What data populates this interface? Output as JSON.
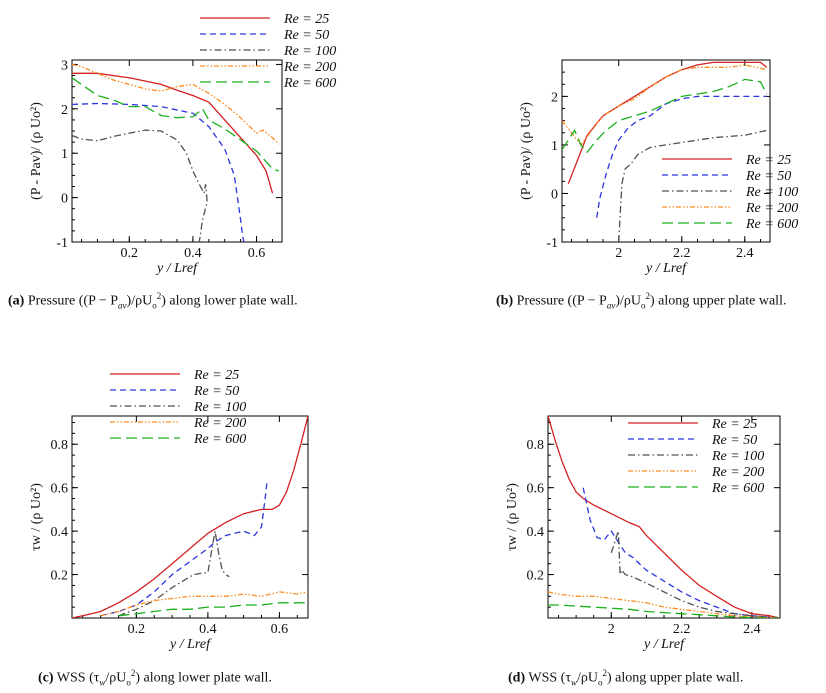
{
  "legend_labels": [
    "Re  = 25",
    "Re  = 50",
    "Re  = 100",
    "Re  = 200",
    "Re  = 600"
  ],
  "series_colors": [
    "#d42020",
    "#2b35e0",
    "#505050",
    "#ff8a1e",
    "#1cb01c"
  ],
  "captions": {
    "a": {
      "label": "(a)",
      "text": "Pressure ((P − P",
      "sub": "av",
      "rest": ")/ρU",
      "sub2": "o",
      "sup": "2",
      "tail": ") along lower plate wall."
    },
    "b": {
      "label": "(b)",
      "text": "Pressure ((P − P",
      "sub": "av",
      "rest": ")/ρU",
      "sub2": "o",
      "sup": "2",
      "tail": ") along upper plate wall."
    },
    "c": {
      "label": "(c)",
      "text": "WSS (τ",
      "sub": "w",
      "rest": "/ρU",
      "sub2": "o",
      "sup": "2",
      "tail": ") along lower plate wall."
    },
    "d": {
      "label": "(d)",
      "text": "WSS (τ",
      "sub": "w",
      "rest": "/ρU",
      "sub2": "o",
      "sup": "2",
      "tail": ") along upper plate wall."
    }
  },
  "chart_data": [
    {
      "id": "a",
      "type": "line",
      "title": "",
      "xlabel": "y / Lref",
      "ylabel": "(P - P_av)/ (ρ U_o^2)",
      "xlim": [
        0.02,
        0.68
      ],
      "ylim": [
        -1,
        3.1
      ],
      "xticks": [
        0.2,
        0.4,
        0.6
      ],
      "xtick_labels": [
        "0.2",
        "0.4",
        "0.6"
      ],
      "yticks": [
        -1,
        0,
        1,
        2,
        3
      ],
      "ytick_labels": [
        "-1",
        "0",
        "1",
        "2",
        "3"
      ],
      "legend": "top-center",
      "series": [
        {
          "name": "Re  = 25",
          "x": [
            0.02,
            0.1,
            0.2,
            0.3,
            0.35,
            0.4,
            0.45,
            0.5,
            0.55,
            0.6,
            0.63,
            0.65
          ],
          "y": [
            2.8,
            2.8,
            2.7,
            2.55,
            2.42,
            2.3,
            2.15,
            1.75,
            1.35,
            0.95,
            0.6,
            0.1
          ]
        },
        {
          "name": "Re  = 50",
          "x": [
            0.02,
            0.1,
            0.2,
            0.3,
            0.4,
            0.45,
            0.5,
            0.53,
            0.54,
            0.55,
            0.555,
            0.56
          ],
          "y": [
            2.1,
            2.12,
            2.1,
            2.05,
            1.9,
            1.6,
            1.1,
            0.5,
            0.0,
            -0.5,
            -0.8,
            -1.0
          ]
        },
        {
          "name": "Re  = 100",
          "x": [
            0.02,
            0.05,
            0.1,
            0.15,
            0.2,
            0.25,
            0.3,
            0.35,
            0.38,
            0.4,
            0.42,
            0.435,
            0.44,
            0.445,
            0.43,
            0.42
          ],
          "y": [
            1.4,
            1.32,
            1.28,
            1.38,
            1.45,
            1.52,
            1.5,
            1.3,
            1.0,
            0.6,
            0.3,
            0.1,
            0.3,
            -0.1,
            -0.5,
            -1.0
          ]
        },
        {
          "name": "Re  = 200",
          "x": [
            0.02,
            0.05,
            0.1,
            0.15,
            0.2,
            0.25,
            0.3,
            0.35,
            0.4,
            0.45,
            0.5,
            0.55,
            0.6,
            0.62,
            0.65,
            0.67
          ],
          "y": [
            3.0,
            2.95,
            2.8,
            2.65,
            2.55,
            2.45,
            2.4,
            2.5,
            2.55,
            2.35,
            2.1,
            1.8,
            1.45,
            1.52,
            1.35,
            1.2
          ]
        },
        {
          "name": "Re  = 600",
          "x": [
            0.02,
            0.05,
            0.1,
            0.15,
            0.2,
            0.25,
            0.3,
            0.35,
            0.4,
            0.43,
            0.45,
            0.5,
            0.55,
            0.6,
            0.65,
            0.67
          ],
          "y": [
            2.7,
            2.55,
            2.3,
            2.2,
            2.05,
            2.05,
            1.85,
            1.8,
            1.82,
            2.0,
            1.75,
            1.55,
            1.3,
            1.05,
            0.65,
            0.6
          ]
        }
      ]
    },
    {
      "id": "b",
      "type": "line",
      "title": "",
      "xlabel": "y / Lref",
      "ylabel": "(P - P_av)/ (ρ U_o^2)",
      "xlim": [
        1.82,
        2.48
      ],
      "ylim": [
        -1,
        2.75
      ],
      "xticks": [
        2.0,
        2.2,
        2.4
      ],
      "xtick_labels": [
        "2",
        "2.2",
        "2.4"
      ],
      "yticks": [
        -1,
        0,
        1,
        2
      ],
      "ytick_labels": [
        "-1",
        "0",
        "1",
        "2"
      ],
      "legend": "lower-right",
      "series": [
        {
          "name": "Re  = 25",
          "x": [
            1.84,
            1.87,
            1.9,
            1.95,
            2.0,
            2.05,
            2.1,
            2.15,
            2.2,
            2.25,
            2.3,
            2.35,
            2.4,
            2.45,
            2.47
          ],
          "y": [
            0.2,
            0.7,
            1.2,
            1.6,
            1.8,
            2.0,
            2.2,
            2.4,
            2.55,
            2.65,
            2.7,
            2.7,
            2.7,
            2.7,
            2.6
          ]
        },
        {
          "name": "Re  = 50",
          "x": [
            1.93,
            1.94,
            1.96,
            1.98,
            2.0,
            2.03,
            2.06,
            2.1,
            2.15,
            2.2,
            2.25,
            2.3,
            2.35,
            2.4,
            2.47
          ],
          "y": [
            -0.5,
            -0.1,
            0.4,
            0.8,
            1.1,
            1.35,
            1.5,
            1.6,
            1.85,
            1.95,
            2.0,
            2.0,
            2.0,
            2.0,
            2.0
          ]
        },
        {
          "name": "Re  = 100",
          "x": [
            2.0,
            2.005,
            2.01,
            2.02,
            2.04,
            2.06,
            2.1,
            2.15,
            2.2,
            2.3,
            2.4,
            2.47
          ],
          "y": [
            -1.0,
            -0.4,
            0.2,
            0.5,
            0.62,
            0.8,
            0.95,
            1.0,
            1.05,
            1.15,
            1.2,
            1.3
          ]
        },
        {
          "name": "Re  = 200",
          "x": [
            1.82,
            1.85,
            1.88,
            1.92,
            1.95,
            2.0,
            2.05,
            2.1,
            2.15,
            2.2,
            2.25,
            2.3,
            2.35,
            2.4,
            2.47
          ],
          "y": [
            1.5,
            1.25,
            1.0,
            1.35,
            1.6,
            1.8,
            1.95,
            2.2,
            2.4,
            2.55,
            2.6,
            2.6,
            2.6,
            2.65,
            2.55
          ]
        },
        {
          "name": "Re  = 600",
          "x": [
            1.82,
            1.84,
            1.86,
            1.88,
            1.9,
            1.93,
            1.96,
            2.0,
            2.05,
            2.1,
            2.15,
            2.2,
            2.25,
            2.3,
            2.35,
            2.4,
            2.45,
            2.47
          ],
          "y": [
            0.9,
            1.1,
            1.3,
            1.0,
            0.85,
            1.1,
            1.3,
            1.5,
            1.6,
            1.7,
            1.85,
            2.0,
            2.05,
            2.1,
            2.2,
            2.35,
            2.3,
            2.05
          ]
        }
      ]
    },
    {
      "id": "c",
      "type": "line",
      "title": "",
      "xlabel": "y / Lref",
      "ylabel": "τ_w / (ρ U_o^2)",
      "xlim": [
        0.02,
        0.68
      ],
      "ylim": [
        0,
        0.93
      ],
      "xticks": [
        0.2,
        0.4,
        0.6
      ],
      "xtick_labels": [
        "0.2",
        "0.4",
        "0.6"
      ],
      "yticks": [
        0.2,
        0.4,
        0.6,
        0.8
      ],
      "ytick_labels": [
        "0.2",
        "0.4",
        "0.6",
        "0.8"
      ],
      "legend": "top-center",
      "series": [
        {
          "name": "Re  = 25",
          "x": [
            0.02,
            0.05,
            0.1,
            0.15,
            0.2,
            0.25,
            0.3,
            0.35,
            0.4,
            0.45,
            0.5,
            0.55,
            0.58,
            0.6,
            0.62,
            0.64,
            0.66,
            0.68
          ],
          "y": [
            0.0,
            0.01,
            0.03,
            0.07,
            0.12,
            0.18,
            0.25,
            0.32,
            0.39,
            0.44,
            0.48,
            0.5,
            0.5,
            0.52,
            0.58,
            0.68,
            0.8,
            0.93
          ]
        },
        {
          "name": "Re  = 50",
          "x": [
            0.1,
            0.15,
            0.2,
            0.25,
            0.3,
            0.35,
            0.4,
            0.42,
            0.45,
            0.5,
            0.53,
            0.55,
            0.56,
            0.565
          ],
          "y": [
            0.01,
            0.03,
            0.06,
            0.12,
            0.2,
            0.26,
            0.32,
            0.35,
            0.38,
            0.4,
            0.38,
            0.42,
            0.55,
            0.62
          ]
        },
        {
          "name": "Re  = 100",
          "x": [
            0.15,
            0.2,
            0.25,
            0.3,
            0.33,
            0.36,
            0.4,
            0.42,
            0.43,
            0.44,
            0.45,
            0.46,
            0.45
          ],
          "y": [
            0.01,
            0.04,
            0.08,
            0.14,
            0.17,
            0.2,
            0.21,
            0.4,
            0.3,
            0.22,
            0.2,
            0.19,
            0.2
          ]
        },
        {
          "name": "Re  = 200",
          "x": [
            0.1,
            0.15,
            0.2,
            0.25,
            0.3,
            0.35,
            0.4,
            0.45,
            0.5,
            0.55,
            0.6,
            0.65,
            0.68
          ],
          "y": [
            0.01,
            0.03,
            0.06,
            0.08,
            0.09,
            0.1,
            0.1,
            0.1,
            0.11,
            0.1,
            0.12,
            0.11,
            0.12
          ]
        },
        {
          "name": "Re  = 600",
          "x": [
            0.15,
            0.2,
            0.25,
            0.3,
            0.35,
            0.4,
            0.45,
            0.5,
            0.55,
            0.6,
            0.65,
            0.68
          ],
          "y": [
            0.01,
            0.02,
            0.03,
            0.04,
            0.04,
            0.05,
            0.05,
            0.06,
            0.06,
            0.07,
            0.07,
            0.07
          ]
        }
      ]
    },
    {
      "id": "d",
      "type": "line",
      "title": "",
      "xlabel": "y / Lref",
      "ylabel": "τ_w / (ρ U_o^2)",
      "xlim": [
        1.82,
        2.48
      ],
      "ylim": [
        0,
        0.93
      ],
      "xticks": [
        2.0,
        2.2,
        2.4
      ],
      "xtick_labels": [
        "2",
        "2.2",
        "2.4"
      ],
      "yticks": [
        0.2,
        0.4,
        0.6,
        0.8
      ],
      "ytick_labels": [
        "0.2",
        "0.4",
        "0.6",
        "0.8"
      ],
      "legend": "top-right",
      "series": [
        {
          "name": "Re  = 25",
          "x": [
            1.82,
            1.84,
            1.86,
            1.88,
            1.9,
            1.92,
            1.95,
            2.0,
            2.05,
            2.08,
            2.1,
            2.15,
            2.2,
            2.25,
            2.3,
            2.35,
            2.4,
            2.45,
            2.48
          ],
          "y": [
            0.93,
            0.82,
            0.72,
            0.64,
            0.58,
            0.55,
            0.52,
            0.48,
            0.44,
            0.42,
            0.38,
            0.3,
            0.22,
            0.15,
            0.1,
            0.05,
            0.02,
            0.01,
            0.0
          ]
        },
        {
          "name": "Re  = 50",
          "x": [
            1.92,
            1.94,
            1.96,
            1.98,
            2.0,
            2.02,
            2.04,
            2.06,
            2.1,
            2.15,
            2.2,
            2.25,
            2.3,
            2.35,
            2.4,
            2.48
          ],
          "y": [
            0.6,
            0.45,
            0.37,
            0.36,
            0.4,
            0.35,
            0.3,
            0.28,
            0.22,
            0.17,
            0.12,
            0.08,
            0.05,
            0.02,
            0.01,
            0.0
          ]
        },
        {
          "name": "Re  = 100",
          "x": [
            2.0,
            2.02,
            2.025,
            2.03,
            2.04,
            2.06,
            2.1,
            2.15,
            2.2,
            2.25,
            2.3,
            2.35,
            2.4,
            2.48
          ],
          "y": [
            0.3,
            0.4,
            0.2,
            0.22,
            0.2,
            0.19,
            0.16,
            0.12,
            0.08,
            0.05,
            0.03,
            0.02,
            0.01,
            0.0
          ]
        },
        {
          "name": "Re  = 200",
          "x": [
            1.82,
            1.85,
            1.9,
            1.95,
            2.0,
            2.05,
            2.1,
            2.15,
            2.2,
            2.25,
            2.3,
            2.35,
            2.4,
            2.48
          ],
          "y": [
            0.12,
            0.11,
            0.1,
            0.1,
            0.09,
            0.08,
            0.07,
            0.05,
            0.04,
            0.03,
            0.02,
            0.01,
            0.005,
            0.0
          ]
        },
        {
          "name": "Re  = 600",
          "x": [
            1.82,
            1.85,
            1.9,
            1.95,
            2.0,
            2.05,
            2.1,
            2.15,
            2.2,
            2.25,
            2.3,
            2.35,
            2.4,
            2.48
          ],
          "y": [
            0.06,
            0.06,
            0.055,
            0.05,
            0.045,
            0.04,
            0.03,
            0.025,
            0.02,
            0.015,
            0.01,
            0.005,
            0.002,
            0.0
          ]
        }
      ]
    }
  ]
}
